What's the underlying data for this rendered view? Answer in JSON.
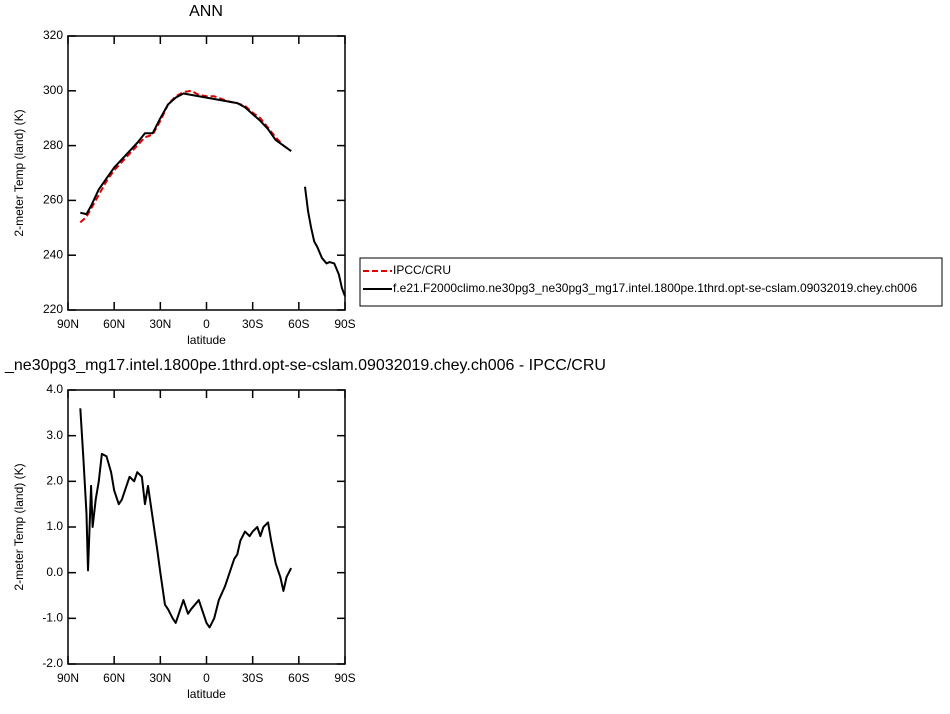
{
  "chart_data": [
    {
      "type": "line",
      "title": "ANN",
      "xlabel": "latitude",
      "ylabel": "2-meter Temp (land) (K)",
      "x": [
        82,
        78,
        75,
        70,
        65,
        60,
        55,
        50,
        45,
        40,
        35,
        30,
        25,
        20,
        15,
        10,
        5,
        0,
        -5,
        -10,
        -15,
        -20,
        -25,
        -30,
        -35,
        -40,
        -45,
        -50,
        -55,
        -60,
        -64,
        -66,
        -68,
        -70,
        -72,
        -75,
        -78,
        -80,
        -83,
        -86,
        -88,
        -90
      ],
      "series": [
        {
          "name": "IPCC/CRU",
          "color": "#e00000",
          "dash": "dashed",
          "values": [
            252,
            254,
            257,
            262,
            267,
            271,
            274,
            277,
            280,
            283,
            284,
            289,
            295,
            298,
            299.5,
            300,
            298.5,
            298,
            298,
            297,
            296,
            295.5,
            294.5,
            292,
            290,
            286.5,
            283,
            280,
            278,
            null,
            null,
            null,
            null,
            null,
            null,
            null,
            null,
            null,
            null,
            null,
            null,
            null
          ]
        },
        {
          "name": "f.e21.F2000climo.ne30pg3_ne30pg3_mg17.intel.1800pe.1thrd.opt-se-cslam.09032019.chey.ch006",
          "color": "#000000",
          "dash": "solid",
          "values": [
            255.5,
            255,
            258,
            264,
            268,
            272,
            275,
            278,
            281,
            284.5,
            284.5,
            290,
            295,
            297.5,
            299,
            298.5,
            298,
            297.5,
            297,
            296.5,
            296,
            295.5,
            294,
            291.5,
            289,
            286,
            282,
            280,
            278,
            null,
            265,
            256,
            250,
            245,
            243,
            239,
            237,
            237.5,
            237,
            233,
            228,
            225
          ]
        }
      ],
      "xlim": [
        90,
        -90
      ],
      "xticks": [
        {
          "value": 90,
          "label": "90N"
        },
        {
          "value": 60,
          "label": "60N"
        },
        {
          "value": 30,
          "label": "30N"
        },
        0,
        {
          "value": -30,
          "label": "30S"
        },
        {
          "value": -60,
          "label": "60S"
        },
        {
          "value": -90,
          "label": "90S"
        }
      ],
      "ylim": [
        220,
        320
      ],
      "yticks": [
        220,
        240,
        260,
        280,
        300,
        320
      ],
      "legend": "right"
    },
    {
      "type": "line",
      "title": "_ne30pg3_mg17.intel.1800pe.1thrd.opt-se-cslam.09032019.chey.ch006 - IPCC/CRU",
      "xlabel": "latitude",
      "ylabel": "2-meter Temp (land) (K)",
      "x": [
        82,
        80,
        78,
        77,
        75,
        74,
        72,
        70,
        68,
        65,
        62,
        60,
        57,
        55,
        50,
        47,
        45,
        42,
        40,
        38,
        35,
        32,
        30,
        27,
        25,
        22,
        20,
        18,
        15,
        12,
        10,
        5,
        2,
        0,
        -2,
        -5,
        -8,
        -12,
        -15,
        -18,
        -20,
        -22,
        -25,
        -28,
        -30,
        -33,
        -35,
        -37,
        -40,
        -42,
        -45,
        -48,
        -50,
        -52,
        -55
      ],
      "series": [
        {
          "color": "#000000",
          "dash": "solid",
          "values": [
            3.6,
            2.5,
            1.3,
            0.05,
            1.9,
            1.0,
            1.6,
            2.0,
            2.6,
            2.55,
            2.2,
            1.8,
            1.5,
            1.6,
            2.1,
            2.0,
            2.2,
            2.1,
            1.5,
            1.9,
            1.2,
            0.5,
            0.0,
            -0.7,
            -0.8,
            -1.0,
            -1.1,
            -0.9,
            -0.6,
            -0.9,
            -0.8,
            -0.6,
            -0.9,
            -1.1,
            -1.2,
            -1.0,
            -0.6,
            -0.3,
            0.0,
            0.3,
            0.4,
            0.7,
            0.9,
            0.8,
            0.9,
            1.0,
            0.8,
            1.0,
            1.1,
            0.7,
            0.2,
            -0.1,
            -0.4,
            -0.1,
            0.1
          ]
        }
      ],
      "xlim": [
        90,
        -90
      ],
      "xticks": [
        {
          "value": 90,
          "label": "90N"
        },
        {
          "value": 60,
          "label": "60N"
        },
        {
          "value": 30,
          "label": "30N"
        },
        0,
        {
          "value": -30,
          "label": "30S"
        },
        {
          "value": -60,
          "label": "60S"
        },
        {
          "value": -90,
          "label": "90S"
        }
      ],
      "ylim": [
        -2,
        4
      ],
      "yticks": [
        {
          "value": -2,
          "label": "-2.0"
        },
        {
          "value": -1,
          "label": "-1.0"
        },
        {
          "value": 0,
          "label": "0.0"
        },
        {
          "value": 1,
          "label": "1.0"
        },
        {
          "value": 2,
          "label": "2.0"
        },
        {
          "value": 3,
          "label": "3.0"
        },
        {
          "value": 4,
          "label": "4.0"
        }
      ]
    }
  ]
}
